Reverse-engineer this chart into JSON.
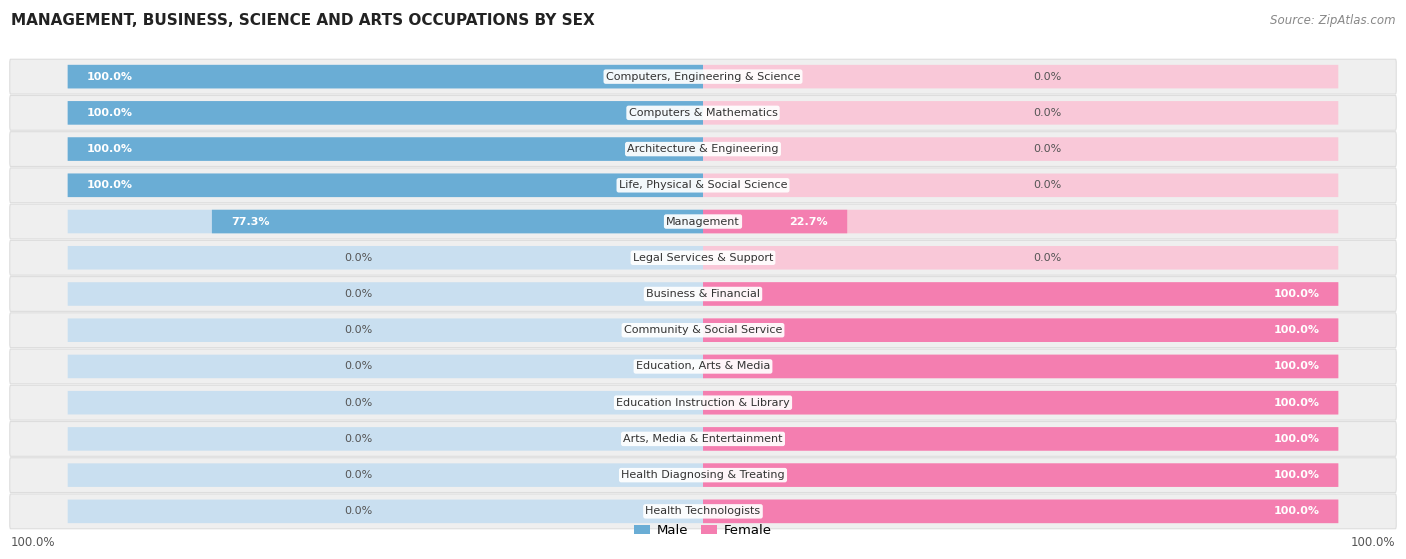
{
  "title": "MANAGEMENT, BUSINESS, SCIENCE AND ARTS OCCUPATIONS BY SEX",
  "source": "Source: ZipAtlas.com",
  "categories": [
    "Computers, Engineering & Science",
    "Computers & Mathematics",
    "Architecture & Engineering",
    "Life, Physical & Social Science",
    "Management",
    "Legal Services & Support",
    "Business & Financial",
    "Community & Social Service",
    "Education, Arts & Media",
    "Education Instruction & Library",
    "Arts, Media & Entertainment",
    "Health Diagnosing & Treating",
    "Health Technologists"
  ],
  "male_pct": [
    100.0,
    100.0,
    100.0,
    100.0,
    77.3,
    0.0,
    0.0,
    0.0,
    0.0,
    0.0,
    0.0,
    0.0,
    0.0
  ],
  "female_pct": [
    0.0,
    0.0,
    0.0,
    0.0,
    22.7,
    0.0,
    100.0,
    100.0,
    100.0,
    100.0,
    100.0,
    100.0,
    100.0
  ],
  "male_color": "#6aadd5",
  "female_color": "#f47eb0",
  "bar_bg_male": "#c9dff0",
  "bar_bg_female": "#f9c8d8",
  "row_bg": "#efefef",
  "row_edge": "#dddddd",
  "legend_male": "Male",
  "legend_female": "Female",
  "label_pct_inside_color": "white",
  "label_pct_outside_color": "#555555",
  "label_cat_color": "#333333",
  "title_color": "#222222",
  "source_color": "#888888"
}
